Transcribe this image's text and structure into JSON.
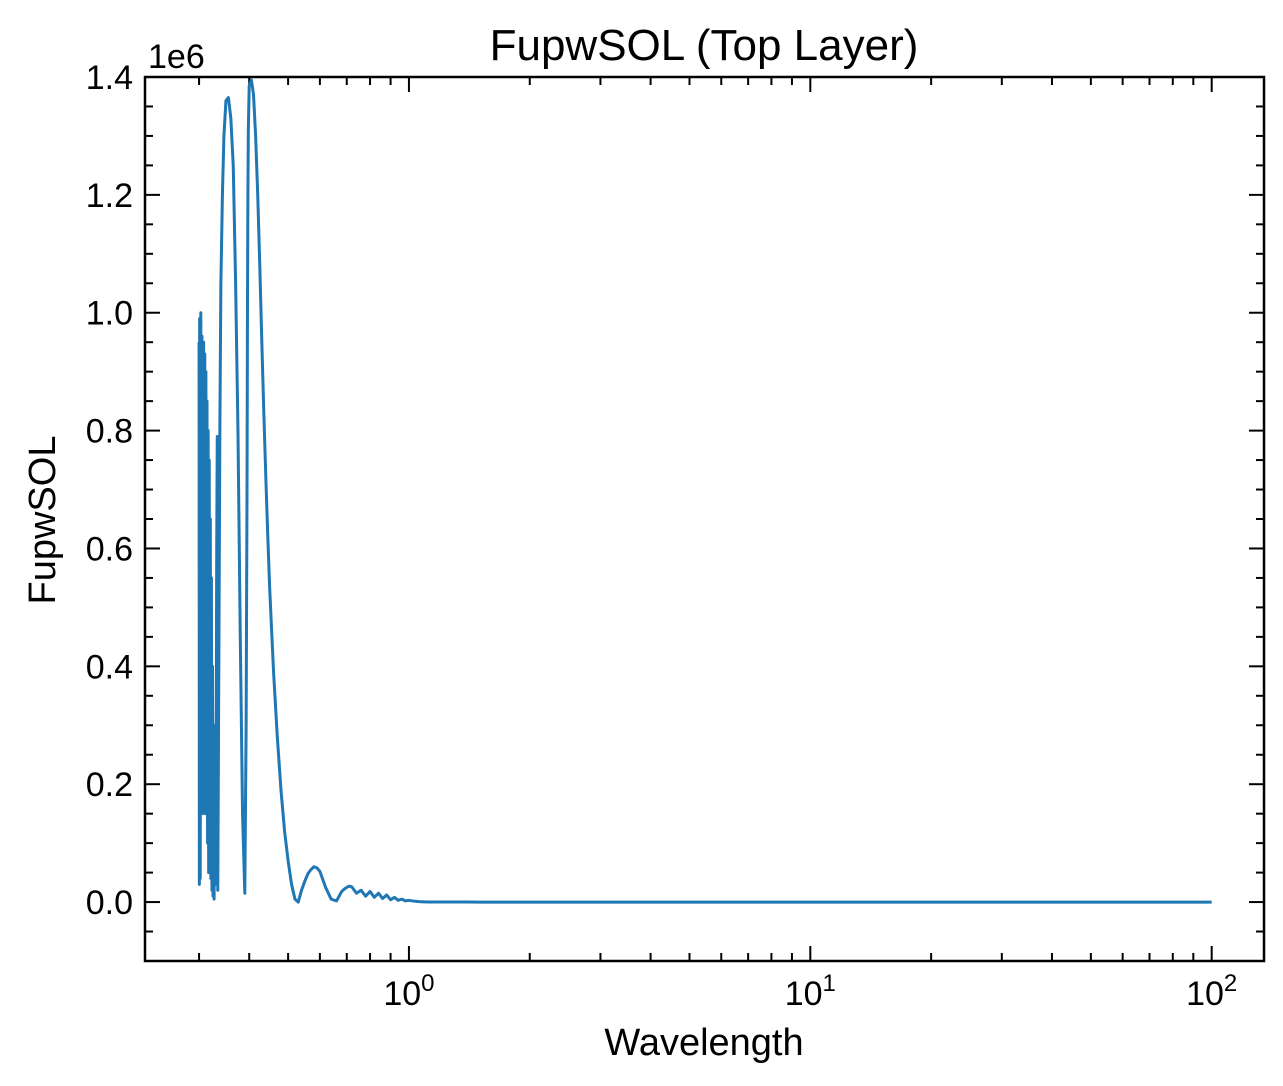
{
  "chart_data": {
    "type": "line",
    "title": "FupwSOL (Top Layer)",
    "xlabel": "Wavelength",
    "ylabel": "FupwSOL",
    "x_scale": "log",
    "xlim": [
      0.22,
      135
    ],
    "ylim": [
      -100000,
      1400000
    ],
    "y_offset_label": "1e6",
    "x_tick_labels": [
      {
        "value": 1,
        "base": "10",
        "exp": "0"
      },
      {
        "value": 10,
        "base": "10",
        "exp": "1"
      },
      {
        "value": 100,
        "base": "10",
        "exp": "2"
      }
    ],
    "y_ticks": [
      0,
      200000,
      400000,
      600000,
      800000,
      1000000,
      1200000,
      1400000
    ],
    "y_tick_labels": [
      "0.0",
      "0.2",
      "0.4",
      "0.6",
      "0.8",
      "1.0",
      "1.2",
      "1.4"
    ],
    "grid": false,
    "colors": {
      "line": "#1f77b4",
      "axes": "#000000"
    },
    "series": [
      {
        "name": "",
        "x": [
          0.3,
          0.3005,
          0.301,
          0.302,
          0.303,
          0.304,
          0.305,
          0.306,
          0.307,
          0.3075,
          0.308,
          0.309,
          0.31,
          0.311,
          0.312,
          0.313,
          0.314,
          0.315,
          0.316,
          0.317,
          0.318,
          0.319,
          0.32,
          0.321,
          0.322,
          0.323,
          0.324,
          0.325,
          0.326,
          0.327,
          0.328,
          0.329,
          0.33,
          0.331,
          0.332,
          0.333,
          0.334,
          0.336,
          0.338,
          0.34,
          0.343,
          0.346,
          0.35,
          0.355,
          0.36,
          0.365,
          0.37,
          0.375,
          0.38,
          0.385,
          0.39,
          0.393,
          0.395,
          0.396,
          0.397,
          0.398,
          0.4,
          0.405,
          0.41,
          0.415,
          0.42,
          0.425,
          0.43,
          0.435,
          0.44,
          0.445,
          0.45,
          0.46,
          0.47,
          0.48,
          0.49,
          0.5,
          0.51,
          0.52,
          0.53,
          0.54,
          0.55,
          0.56,
          0.57,
          0.58,
          0.59,
          0.6,
          0.62,
          0.64,
          0.66,
          0.67,
          0.68,
          0.69,
          0.7,
          0.71,
          0.72,
          0.74,
          0.76,
          0.78,
          0.8,
          0.82,
          0.84,
          0.86,
          0.88,
          0.9,
          0.92,
          0.94,
          0.96,
          0.98,
          1.0,
          1.03,
          1.06,
          1.09,
          1.12,
          1.15,
          1.2,
          1.25,
          1.3,
          1.4,
          1.5,
          1.6,
          1.8,
          2.0,
          2.5,
          3.0,
          4.0,
          5.0,
          7.0,
          10.0,
          20.0,
          30.0,
          50.0,
          70.0,
          100.0
        ],
        "y": [
          950000,
          30000,
          990000,
          40000,
          1000000,
          600000,
          960000,
          150000,
          940000,
          200000,
          950000,
          500000,
          930000,
          150000,
          900000,
          300000,
          850000,
          100000,
          800000,
          50000,
          750000,
          150000,
          650000,
          40000,
          550000,
          20000,
          400000,
          10000,
          300000,
          5000,
          200000,
          100000,
          30000,
          300000,
          600000,
          790000,
          20000,
          400000,
          800000,
          1050000,
          1200000,
          1300000,
          1360000,
          1365000,
          1330000,
          1250000,
          1050000,
          800000,
          450000,
          150000,
          15000,
          300000,
          700000,
          1000000,
          1200000,
          1310000,
          1385000,
          1395000,
          1370000,
          1300000,
          1200000,
          1080000,
          950000,
          830000,
          720000,
          620000,
          530000,
          390000,
          280000,
          190000,
          120000,
          70000,
          30000,
          5000,
          0,
          20000,
          35000,
          48000,
          55000,
          60000,
          58000,
          52000,
          25000,
          5000,
          2000,
          10000,
          18000,
          22000,
          25000,
          27000,
          26000,
          15000,
          20000,
          10000,
          18000,
          8000,
          15000,
          6000,
          12000,
          4000,
          8000,
          3000,
          5000,
          2000,
          3000,
          1500,
          800,
          400,
          200,
          100,
          50,
          20,
          10,
          5,
          2,
          1,
          0,
          0,
          0,
          0,
          0,
          0,
          0,
          0,
          0,
          0,
          0,
          0,
          0
        ]
      }
    ]
  }
}
